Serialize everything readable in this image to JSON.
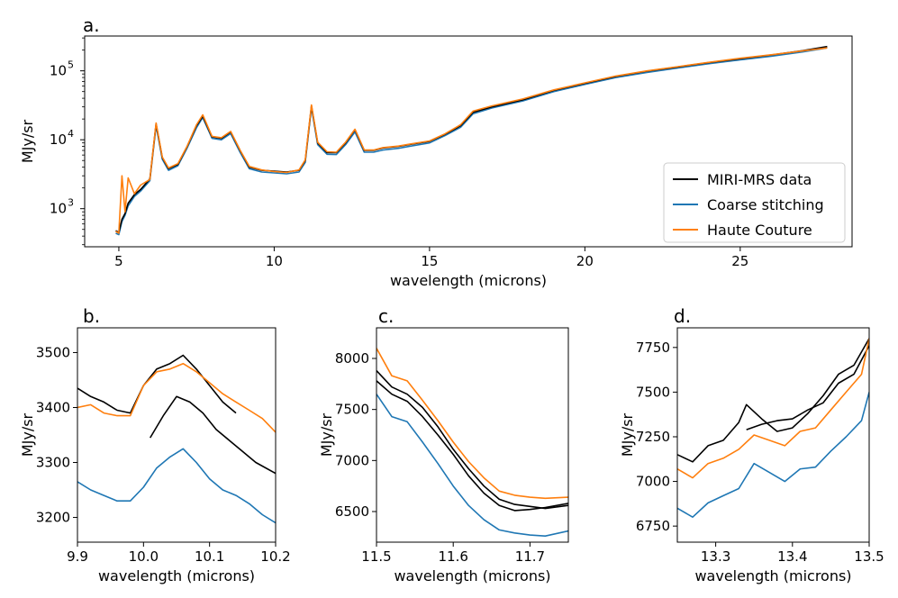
{
  "colors": {
    "data": "#000000",
    "coarse": "#1f77b4",
    "haute": "#ff7f0e"
  },
  "chart_data": [
    {
      "id": "a",
      "type": "line",
      "panel_label": "a.",
      "xlabel": "wavelength (microns)",
      "ylabel": "MJy/sr",
      "yscale": "log",
      "xlim": [
        3.9,
        28.6
      ],
      "ylim": [
        280,
        320000
      ],
      "xticks": [
        5,
        10,
        15,
        20,
        25
      ],
      "xtick_labels": [
        "5",
        "10",
        "15",
        "20",
        "25"
      ],
      "yticks": [
        1000,
        10000,
        100000
      ],
      "ytick_labels": [
        "10",
        "10",
        "10"
      ],
      "ytick_exponents": [
        "3",
        "4",
        "5"
      ],
      "legend": {
        "location": "lower-right",
        "entries": [
          {
            "key": "data",
            "label": "MIRI-MRS data"
          },
          {
            "key": "coarse",
            "label": "Coarse stitching"
          },
          {
            "key": "haute",
            "label": "Haute Couture"
          }
        ]
      },
      "series": [
        {
          "key": "data",
          "x": [
            4.9,
            5.0,
            5.1,
            5.2,
            5.3,
            5.5,
            5.7,
            6.0,
            6.2,
            6.4,
            6.6,
            6.9,
            7.2,
            7.5,
            7.7,
            8.0,
            8.3,
            8.6,
            8.9,
            9.2,
            9.6,
            10.0,
            10.4,
            10.8,
            11.0,
            11.2,
            11.4,
            11.7,
            12.0,
            12.3,
            12.6,
            12.9,
            13.2,
            13.5,
            14.0,
            14.4,
            15.0,
            15.5,
            16.0,
            16.4,
            17.0,
            18.0,
            19.0,
            20.0,
            21.0,
            22.0,
            23.0,
            24.0,
            25.0,
            26.0,
            27.0,
            27.8
          ],
          "y": [
            480,
            450,
            700,
            850,
            1200,
            1600,
            1900,
            2700,
            17000,
            5500,
            3800,
            4400,
            8000,
            16000,
            22000,
            11000,
            10500,
            13000,
            7000,
            4000,
            3600,
            3500,
            3400,
            3600,
            5000,
            31000,
            9000,
            6500,
            6500,
            9000,
            14000,
            7000,
            7000,
            7600,
            8000,
            8600,
            9500,
            12000,
            16000,
            25000,
            30000,
            38000,
            52000,
            66000,
            83000,
            99000,
            114000,
            132000,
            150000,
            170000,
            196000,
            225000
          ]
        },
        {
          "key": "coarse",
          "x": [
            4.9,
            5.0,
            5.1,
            5.2,
            5.3,
            5.5,
            5.7,
            6.0,
            6.2,
            6.4,
            6.6,
            6.9,
            7.2,
            7.5,
            7.7,
            8.0,
            8.3,
            8.6,
            8.9,
            9.2,
            9.6,
            10.0,
            10.4,
            10.8,
            11.0,
            11.2,
            11.4,
            11.7,
            12.0,
            12.3,
            12.6,
            12.9,
            13.2,
            13.5,
            14.0,
            14.4,
            15.0,
            15.5,
            16.0,
            16.4,
            17.0,
            18.0,
            19.0,
            20.0,
            21.0,
            22.0,
            23.0,
            24.0,
            25.0,
            26.0,
            27.0,
            27.8
          ],
          "y": [
            440,
            420,
            650,
            800,
            1100,
            1500,
            1800,
            2550,
            16000,
            5200,
            3600,
            4200,
            7600,
            15000,
            21000,
            10500,
            10000,
            12300,
            6600,
            3800,
            3400,
            3300,
            3200,
            3400,
            4700,
            29500,
            8500,
            6150,
            6100,
            8500,
            13000,
            6600,
            6600,
            7100,
            7500,
            8100,
            9000,
            11500,
            15200,
            23800,
            28800,
            36500,
            50000,
            63500,
            80000,
            95000,
            110000,
            127000,
            144000,
            163000,
            188000,
            215000
          ]
        },
        {
          "key": "haute",
          "x": [
            4.9,
            5.0,
            5.1,
            5.2,
            5.3,
            5.5,
            5.7,
            6.0,
            6.2,
            6.4,
            6.6,
            6.9,
            7.2,
            7.5,
            7.7,
            8.0,
            8.3,
            8.6,
            8.9,
            9.2,
            9.6,
            10.0,
            10.4,
            10.8,
            11.0,
            11.2,
            11.4,
            11.7,
            12.0,
            12.3,
            12.6,
            12.9,
            13.2,
            13.5,
            14.0,
            14.4,
            15.0,
            15.5,
            16.0,
            16.4,
            17.0,
            18.0,
            19.0,
            20.0,
            21.0,
            22.0,
            23.0,
            24.0,
            25.0,
            26.0,
            27.0,
            27.8
          ],
          "y": [
            470,
            440,
            3000,
            900,
            2800,
            1650,
            2200,
            2650,
            17500,
            5600,
            3900,
            4500,
            8100,
            16500,
            23000,
            11200,
            10700,
            13200,
            7100,
            4100,
            3650,
            3450,
            3350,
            3650,
            5100,
            32000,
            9200,
            6700,
            6600,
            9200,
            14200,
            7100,
            7100,
            7700,
            8100,
            8700,
            9600,
            12200,
            16500,
            26000,
            31000,
            39000,
            53000,
            67000,
            84000,
            100000,
            115000,
            133000,
            152000,
            171000,
            194000,
            215000
          ]
        }
      ]
    },
    {
      "id": "b",
      "type": "line",
      "panel_label": "b.",
      "xlabel": "wavelength (microns)",
      "ylabel": "MJy/sr",
      "xlim": [
        9.9,
        10.2
      ],
      "ylim": [
        3155,
        3545
      ],
      "xticks": [
        9.9,
        10.0,
        10.1,
        10.2
      ],
      "xtick_labels": [
        "9.9",
        "10.0",
        "10.1",
        "10.2"
      ],
      "yticks": [
        3200,
        3300,
        3400,
        3500
      ],
      "ytick_labels": [
        "3200",
        "3300",
        "3400",
        "3500"
      ],
      "series": [
        {
          "key": "data",
          "x": [
            9.9,
            9.92,
            9.94,
            9.96,
            9.98,
            10.0,
            10.02,
            10.04,
            10.06,
            10.08,
            10.1,
            10.12,
            10.14
          ],
          "y": [
            3435,
            3420,
            3410,
            3395,
            3390,
            3440,
            3470,
            3480,
            3495,
            3470,
            3440,
            3410,
            3390
          ]
        },
        {
          "key": "data",
          "x": [
            10.01,
            10.03,
            10.05,
            10.07,
            10.09,
            10.11,
            10.13,
            10.15,
            10.17,
            10.2
          ],
          "y": [
            3345,
            3385,
            3420,
            3410,
            3390,
            3360,
            3340,
            3320,
            3300,
            3280
          ]
        },
        {
          "key": "coarse",
          "x": [
            9.9,
            9.92,
            9.94,
            9.96,
            9.98,
            10.0,
            10.02,
            10.04,
            10.06,
            10.08,
            10.1,
            10.12,
            10.14,
            10.16,
            10.18,
            10.2
          ],
          "y": [
            3265,
            3250,
            3240,
            3230,
            3230,
            3255,
            3290,
            3310,
            3325,
            3300,
            3270,
            3250,
            3240,
            3225,
            3205,
            3190
          ]
        },
        {
          "key": "haute",
          "x": [
            9.9,
            9.92,
            9.94,
            9.96,
            9.98,
            10.0,
            10.02,
            10.04,
            10.06,
            10.08,
            10.1,
            10.12,
            10.14,
            10.16,
            10.18,
            10.2
          ],
          "y": [
            3400,
            3405,
            3390,
            3385,
            3385,
            3440,
            3465,
            3470,
            3480,
            3465,
            3445,
            3425,
            3410,
            3395,
            3380,
            3355
          ]
        }
      ]
    },
    {
      "id": "c",
      "type": "line",
      "panel_label": "c.",
      "xlabel": "wavelength (microns)",
      "ylabel": "MJy/sr",
      "xlim": [
        11.5,
        11.75
      ],
      "ylim": [
        6200,
        8300
      ],
      "xticks": [
        11.5,
        11.6,
        11.7
      ],
      "xtick_labels": [
        "11.5",
        "11.6",
        "11.7"
      ],
      "yticks": [
        6500,
        7000,
        7500,
        8000
      ],
      "ytick_labels": [
        "6500",
        "7000",
        "7500",
        "8000"
      ],
      "series": [
        {
          "key": "data",
          "x": [
            11.5,
            11.52,
            11.54,
            11.56,
            11.58,
            11.6,
            11.62,
            11.64,
            11.66,
            11.68,
            11.7,
            11.72,
            11.75
          ],
          "y": [
            7880,
            7720,
            7650,
            7520,
            7330,
            7110,
            6920,
            6750,
            6620,
            6570,
            6550,
            6530,
            6560
          ]
        },
        {
          "key": "data",
          "x": [
            11.5,
            11.52,
            11.54,
            11.56,
            11.58,
            11.6,
            11.62,
            11.64,
            11.66,
            11.68,
            11.7,
            11.72,
            11.75
          ],
          "y": [
            7780,
            7650,
            7580,
            7430,
            7250,
            7060,
            6850,
            6680,
            6560,
            6510,
            6520,
            6540,
            6580
          ]
        },
        {
          "key": "coarse",
          "x": [
            11.5,
            11.52,
            11.54,
            11.56,
            11.58,
            11.6,
            11.62,
            11.64,
            11.66,
            11.68,
            11.7,
            11.72,
            11.75
          ],
          "y": [
            7650,
            7430,
            7380,
            7180,
            6970,
            6750,
            6560,
            6420,
            6320,
            6290,
            6270,
            6260,
            6310
          ]
        },
        {
          "key": "haute",
          "x": [
            11.5,
            11.52,
            11.54,
            11.56,
            11.58,
            11.6,
            11.62,
            11.64,
            11.66,
            11.68,
            11.7,
            11.72,
            11.75
          ],
          "y": [
            8100,
            7830,
            7780,
            7590,
            7390,
            7180,
            6990,
            6830,
            6700,
            6660,
            6640,
            6630,
            6640
          ]
        }
      ]
    },
    {
      "id": "d",
      "type": "line",
      "panel_label": "d.",
      "xlabel": "wavelength (microns)",
      "ylabel": "MJy/sr",
      "xlim": [
        13.25,
        13.5
      ],
      "ylim": [
        6660,
        7860
      ],
      "xticks": [
        13.3,
        13.4,
        13.5
      ],
      "xtick_labels": [
        "13.3",
        "13.4",
        "13.5"
      ],
      "yticks": [
        6750,
        7000,
        7250,
        7500,
        7750
      ],
      "ytick_labels": [
        "6750",
        "7000",
        "7250",
        "7500",
        "7750"
      ],
      "series": [
        {
          "key": "data",
          "x": [
            13.25,
            13.27,
            13.29,
            13.31,
            13.33,
            13.34,
            13.36,
            13.38,
            13.4,
            13.42,
            13.44,
            13.46,
            13.48,
            13.5
          ],
          "y": [
            7150,
            7110,
            7200,
            7230,
            7330,
            7430,
            7350,
            7280,
            7300,
            7380,
            7480,
            7600,
            7650,
            7800
          ]
        },
        {
          "key": "data",
          "x": [
            13.34,
            13.36,
            13.38,
            13.4,
            13.42,
            13.44,
            13.46,
            13.48,
            13.5
          ],
          "y": [
            7290,
            7320,
            7340,
            7350,
            7400,
            7440,
            7550,
            7600,
            7760
          ]
        },
        {
          "key": "coarse",
          "x": [
            13.25,
            13.27,
            13.29,
            13.31,
            13.33,
            13.35,
            13.37,
            13.39,
            13.41,
            13.43,
            13.45,
            13.47,
            13.49,
            13.5
          ],
          "y": [
            6850,
            6800,
            6880,
            6920,
            6960,
            7100,
            7050,
            7000,
            7070,
            7080,
            7170,
            7250,
            7340,
            7500
          ]
        },
        {
          "key": "haute",
          "x": [
            13.25,
            13.27,
            13.29,
            13.31,
            13.33,
            13.35,
            13.37,
            13.39,
            13.41,
            13.43,
            13.45,
            13.47,
            13.49,
            13.5
          ],
          "y": [
            7070,
            7020,
            7100,
            7130,
            7180,
            7260,
            7230,
            7200,
            7280,
            7300,
            7400,
            7500,
            7600,
            7800
          ]
        }
      ]
    }
  ]
}
